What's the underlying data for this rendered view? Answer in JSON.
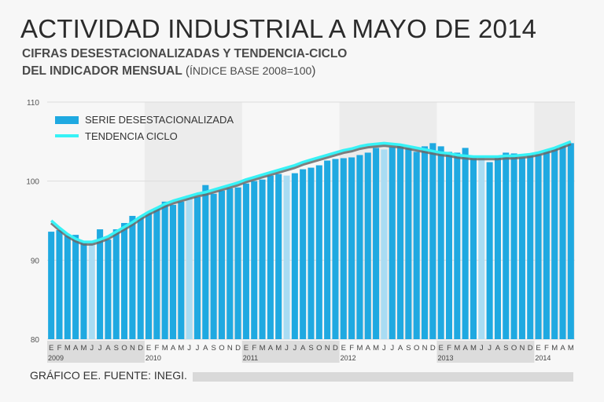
{
  "title": "ACTIVIDAD INDUSTRIAL A MAYO DE 2014",
  "subtitle_line1": "CIFRAS DESESTACIONALIZADAS Y TENDENCIA-CICLO",
  "subtitle_line2": "DEL INDICADOR MENSUAL",
  "subtitle_paren_open": "(",
  "subtitle_note": "ÍNDICE BASE 2008=100",
  "subtitle_paren_close": ")",
  "footer": "GRÁFICO EE. FUENTE: INEGI.",
  "colors": {
    "bar": "#1fa9e1",
    "bar_highlight": "#a9dcf3",
    "trend": "#37f2f6",
    "trend_shadow": "#6a6a6a",
    "grid": "#dddddd",
    "alt_band": "#dcdcdc"
  },
  "chart_data": {
    "type": "bar",
    "title": "ACTIVIDAD INDUSTRIAL A MAYO DE 2014",
    "xlabel": "",
    "ylabel": "",
    "ylim": [
      80,
      110
    ],
    "yticks": [
      80,
      90,
      100,
      110
    ],
    "grid": true,
    "legend": "top-left",
    "highlight_months": [
      "M",
      "J",
      "J"
    ],
    "month_labels": [
      "E",
      "F",
      "M",
      "A",
      "M",
      "J",
      "J",
      "A",
      "S",
      "O",
      "N",
      "D",
      "E",
      "F",
      "M",
      "A",
      "M",
      "J",
      "J",
      "A",
      "S",
      "O",
      "N",
      "D",
      "E",
      "F",
      "M",
      "A",
      "M",
      "J",
      "J",
      "A",
      "S",
      "O",
      "N",
      "D",
      "E",
      "F",
      "M",
      "A",
      "M",
      "J",
      "J",
      "A",
      "S",
      "O",
      "N",
      "D",
      "E",
      "F",
      "M",
      "A",
      "M",
      "J",
      "J",
      "A",
      "S",
      "O",
      "N",
      "D",
      "E",
      "F",
      "M",
      "A",
      "M"
    ],
    "year_labels": [
      "2009",
      "2010",
      "2011",
      "2012",
      "2013",
      "2014"
    ],
    "series": [
      {
        "name": "SERIE DESESTACIONALIZADA",
        "type": "bar",
        "values": [
          93.6,
          93.8,
          93.1,
          93.2,
          92.3,
          92.4,
          93.9,
          92.6,
          93.9,
          94.7,
          95.6,
          95.5,
          96.0,
          96.6,
          97.4,
          97.0,
          97.4,
          98.2,
          98.0,
          99.5,
          98.4,
          98.8,
          99.1,
          99.2,
          99.7,
          100.0,
          100.2,
          100.7,
          100.9,
          100.7,
          101.0,
          101.5,
          101.7,
          102.0,
          102.6,
          102.8,
          102.9,
          103.0,
          103.3,
          103.6,
          104.2,
          104.0,
          104.3,
          104.5,
          104.2,
          103.7,
          104.4,
          104.8,
          104.4,
          103.7,
          103.6,
          104.2,
          102.9,
          103.2,
          102.4,
          103.1,
          103.6,
          103.5,
          103.0,
          103.3,
          103.4,
          103.8,
          104.2,
          104.5,
          104.8
        ]
      },
      {
        "name": "TENDENCIA CICLO",
        "type": "line",
        "values": [
          95.0,
          94.1,
          93.3,
          92.7,
          92.3,
          92.3,
          92.6,
          93.0,
          93.6,
          94.2,
          94.8,
          95.5,
          96.1,
          96.6,
          97.1,
          97.5,
          97.8,
          98.1,
          98.4,
          98.6,
          98.9,
          99.2,
          99.5,
          99.8,
          100.2,
          100.5,
          100.8,
          101.1,
          101.4,
          101.7,
          102.0,
          102.4,
          102.7,
          103.0,
          103.3,
          103.6,
          103.9,
          104.1,
          104.4,
          104.6,
          104.7,
          104.8,
          104.7,
          104.6,
          104.4,
          104.2,
          104.0,
          103.8,
          103.6,
          103.5,
          103.3,
          103.2,
          103.1,
          103.1,
          103.1,
          103.1,
          103.2,
          103.2,
          103.3,
          103.4,
          103.6,
          103.9,
          104.2,
          104.6,
          105.0
        ]
      }
    ]
  }
}
